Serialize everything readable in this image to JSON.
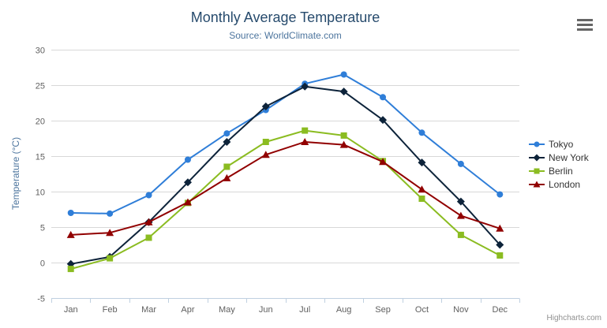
{
  "chart": {
    "credits": "Highcharts.com",
    "context_menu": "chart-context-menu"
  },
  "chart_data": {
    "type": "line",
    "title": "Monthly Average Temperature",
    "subtitle": "Source: WorldClimate.com",
    "xlabel": "",
    "ylabel": "Temperature (°C)",
    "categories": [
      "Jan",
      "Feb",
      "Mar",
      "Apr",
      "May",
      "Jun",
      "Jul",
      "Aug",
      "Sep",
      "Oct",
      "Nov",
      "Dec"
    ],
    "series": [
      {
        "name": "Tokyo",
        "color": "#2f7ed8",
        "marker": "circle",
        "values": [
          7.0,
          6.9,
          9.5,
          14.5,
          18.2,
          21.5,
          25.2,
          26.5,
          23.3,
          18.3,
          13.9,
          9.6
        ]
      },
      {
        "name": "New York",
        "color": "#0d233a",
        "marker": "diamond",
        "values": [
          -0.2,
          0.8,
          5.7,
          11.3,
          17.0,
          22.0,
          24.8,
          24.1,
          20.1,
          14.1,
          8.6,
          2.5
        ]
      },
      {
        "name": "Berlin",
        "color": "#8bbc21",
        "marker": "square",
        "values": [
          -0.9,
          0.6,
          3.5,
          8.4,
          13.5,
          17.0,
          18.6,
          17.9,
          14.3,
          9.0,
          3.9,
          1.0
        ]
      },
      {
        "name": "London",
        "color": "#910000",
        "marker": "triangle",
        "values": [
          3.9,
          4.2,
          5.7,
          8.5,
          11.9,
          15.2,
          17.0,
          16.6,
          14.2,
          10.3,
          6.6,
          4.8
        ]
      }
    ],
    "ylim": [
      -5,
      30
    ],
    "ytick_step": 5,
    "grid": true,
    "legend_position": "right",
    "styles": {
      "grid_color": "#d8d8d8",
      "axis_line_color": "#c0d0e0",
      "tick_label_color": "#606060",
      "title_color": "#274b6d",
      "subtitle_color": "#4d759e",
      "legend_text_color": "#333333",
      "credits_color": "#909090"
    }
  }
}
